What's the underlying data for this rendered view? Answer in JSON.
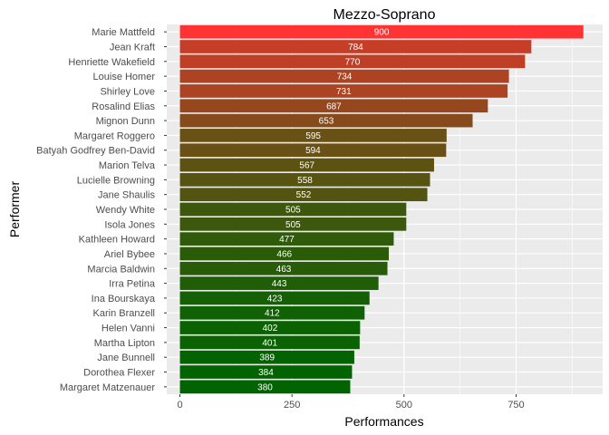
{
  "chart_data": {
    "type": "bar",
    "orientation": "horizontal",
    "title": "Mezzo-Soprano",
    "xlabel": "Performances",
    "ylabel": "Performer",
    "categories": [
      "Marie Mattfeld",
      "Jean Kraft",
      "Henriette Wakefield",
      "Louise Homer",
      "Shirley Love",
      "Rosalind Elias",
      "Mignon Dunn",
      "Margaret Roggero",
      "Batyah Godfrey Ben-David",
      "Marion Telva",
      "Lucielle Browning",
      "Jane Shaulis",
      "Wendy White",
      "Isola Jones",
      "Kathleen Howard",
      "Ariel Bybee",
      "Marcia Baldwin",
      "Irra Petina",
      "Ina Bourskaya",
      "Karin Branzell",
      "Helen Vanni",
      "Martha Lipton",
      "Jane Bunnell",
      "Dorothea Flexer",
      "Margaret Matzenauer"
    ],
    "values": [
      900,
      784,
      770,
      734,
      731,
      687,
      653,
      595,
      594,
      567,
      558,
      552,
      505,
      505,
      477,
      466,
      463,
      443,
      423,
      412,
      402,
      401,
      389,
      384,
      380
    ],
    "xlim": [
      0,
      930
    ],
    "xticks": [
      "0",
      "250",
      "500",
      "750"
    ],
    "grid": true,
    "legend": "none",
    "colors": {
      "panel_background": "#ebebeb",
      "gridline": "#ffffff",
      "bar_high": "#ff3333",
      "bar_low": "#006400"
    }
  }
}
